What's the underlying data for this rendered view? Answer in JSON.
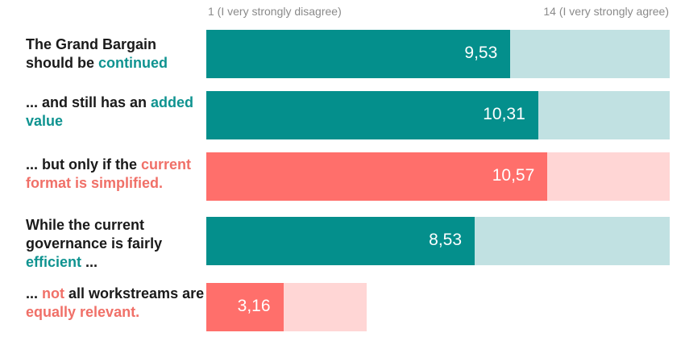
{
  "chart_data": {
    "type": "bar",
    "orientation": "horizontal",
    "axis": {
      "min": 1,
      "max": 14,
      "min_label": "1 (I very strongly disagree)",
      "max_label": "14 (I very strongly agree)"
    },
    "colors": {
      "teal": "#048f8c",
      "teal_light": "#c1e1e2",
      "red": "#ff6f6b",
      "red_light": "#ffd6d5",
      "teal_text": "#0f9390",
      "red_text": "#f07068"
    },
    "rows": [
      {
        "label_parts": [
          {
            "text": "The Grand Bargain should be ",
            "style": "plain"
          },
          {
            "text": "continued",
            "style": "teal"
          }
        ],
        "value": 9.53,
        "value_label": "9,53",
        "color": "teal",
        "track_max": 14
      },
      {
        "label_parts": [
          {
            "text": "... and still has an ",
            "style": "plain"
          },
          {
            "text": "added value",
            "style": "teal"
          }
        ],
        "value": 10.31,
        "value_label": "10,31",
        "color": "teal",
        "track_max": 14
      },
      {
        "label_parts": [
          {
            "text": "... but only if the ",
            "style": "plain"
          },
          {
            "text": "current format is simplified.",
            "style": "red"
          }
        ],
        "value": 10.57,
        "value_label": "10,57",
        "color": "red",
        "track_max": 14
      },
      {
        "label_parts": [
          {
            "text": "While the current governance is fairly ",
            "style": "plain"
          },
          {
            "text": "efficient",
            "style": "teal"
          },
          {
            "text": " ...",
            "style": "plain"
          }
        ],
        "value": 8.53,
        "value_label": "8,53",
        "color": "teal",
        "track_max": 14
      },
      {
        "label_parts": [
          {
            "text": "... ",
            "style": "plain"
          },
          {
            "text": "not",
            "style": "red"
          },
          {
            "text": " all workstreams are ",
            "style": "plain"
          },
          {
            "text": "equally relevant.",
            "style": "red"
          }
        ],
        "value": 3.16,
        "value_label": "3,16",
        "color": "red",
        "track_max": 5.5
      }
    ]
  }
}
